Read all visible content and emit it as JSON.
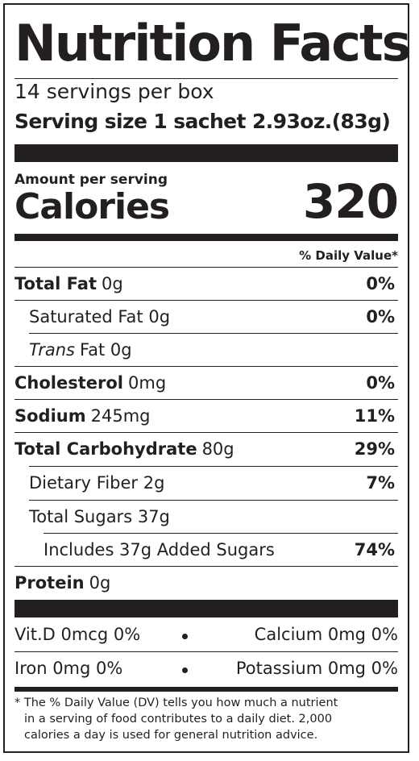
{
  "label": {
    "title": "Nutrition Facts",
    "servings_per_container": "14 servings per box",
    "serving_size_label": "Serving size",
    "serving_size_value": "1 sachet 2.93oz.(83g)",
    "amount_per_serving": "Amount per serving",
    "calories_label": "Calories",
    "calories_value": "320",
    "daily_value_header": "% Daily Value*"
  },
  "nutrients": {
    "total_fat": {
      "name": "Total Fat",
      "amount": "0g",
      "dv": "0%"
    },
    "saturated_fat": {
      "name": "Saturated Fat",
      "amount": "0g",
      "dv": "0%"
    },
    "trans_fat": {
      "name_italic": "Trans",
      "name_rest": "Fat",
      "amount": "0g"
    },
    "cholesterol": {
      "name": "Cholesterol",
      "amount": "0mg",
      "dv": "0%"
    },
    "sodium": {
      "name": "Sodium",
      "amount": "245mg",
      "dv": "11%"
    },
    "total_carbohydrate": {
      "name": "Total Carbohydrate",
      "amount": "80g",
      "dv": "29%"
    },
    "dietary_fiber": {
      "name": "Dietary Fiber",
      "amount": "2g",
      "dv": "7%"
    },
    "total_sugars": {
      "name": "Total Sugars",
      "amount": "37g"
    },
    "added_sugars": {
      "text": "Includes 37g Added Sugars",
      "dv": "74%"
    },
    "protein": {
      "name": "Protein",
      "amount": "0g"
    }
  },
  "micronutrients": {
    "vitamin_d": "Vit.D 0mcg 0%",
    "calcium": "Calcium 0mg 0%",
    "iron": "Iron 0mg 0%",
    "potassium": "Potassium 0mg 0%"
  },
  "footnote": {
    "line1": "* The % Daily Value (DV) tells you how much a nutrient",
    "line2": "in a serving of food contributes to a daily diet. 2,000",
    "line3": "calories a day is used for general nutrition advice."
  },
  "colors": {
    "ink": "#231f20",
    "background": "#ffffff"
  }
}
